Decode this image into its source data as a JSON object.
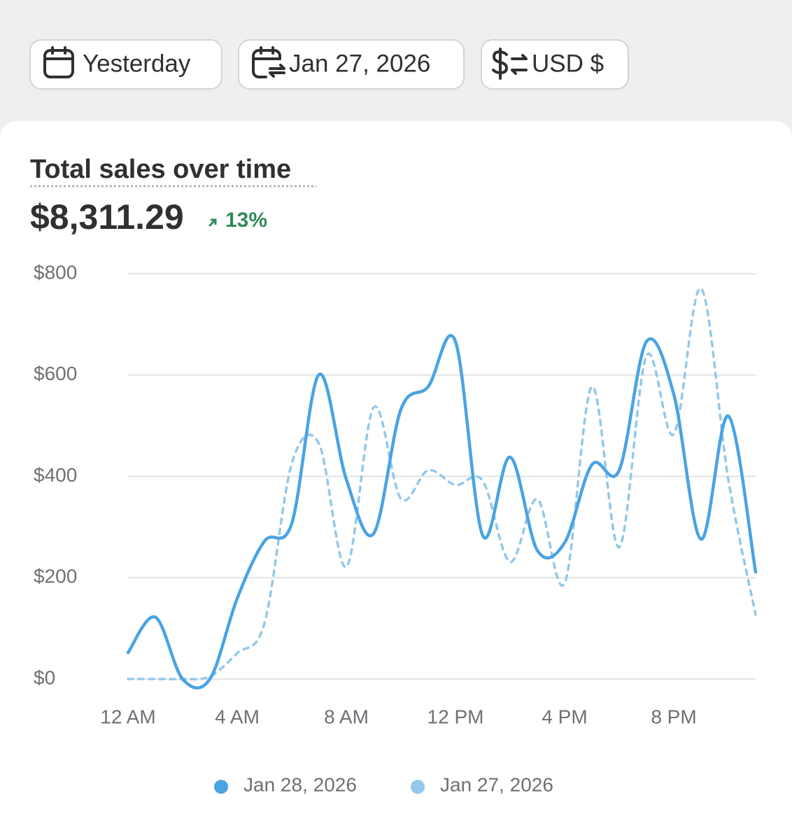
{
  "filters": {
    "period": "Yesterday",
    "compare_date": "Jan 27, 2026",
    "currency": "USD $"
  },
  "chart_data": {
    "type": "line",
    "title": "Total sales over time",
    "total": "$8,311.29",
    "change": "13%",
    "categories": [
      "12 AM",
      null,
      null,
      null,
      "4 AM",
      null,
      null,
      null,
      "8 AM",
      null,
      null,
      null,
      "12 PM",
      null,
      null,
      null,
      "4 PM",
      null,
      null,
      null,
      "8 PM",
      null,
      null,
      null
    ],
    "series": [
      {
        "name": "Jan 28, 2026",
        "color": "#4aa3e3",
        "style": "solid",
        "values": [
          52,
          122,
          0,
          0,
          159,
          272,
          307,
          601,
          394,
          287,
          532,
          577,
          666,
          283,
          438,
          254,
          269,
          423,
          412,
          666,
          562,
          276,
          519,
          211
        ]
      },
      {
        "name": "Jan 27, 2026",
        "color": "#93c8ea",
        "style": "dashed",
        "values": [
          0,
          0,
          0,
          5,
          51,
          110,
          425,
          464,
          221,
          536,
          356,
          412,
          383,
          391,
          231,
          355,
          189,
          577,
          260,
          638,
          483,
          771,
          394,
          127
        ]
      }
    ],
    "ylim": [
      0,
      800
    ],
    "yticks": [
      {
        "value": 0,
        "label": "$0"
      },
      {
        "value": 200,
        "label": "$200"
      },
      {
        "value": 400,
        "label": "$400"
      },
      {
        "value": 600,
        "label": "$600"
      },
      {
        "value": 800,
        "label": "$800"
      }
    ],
    "grid": true
  }
}
